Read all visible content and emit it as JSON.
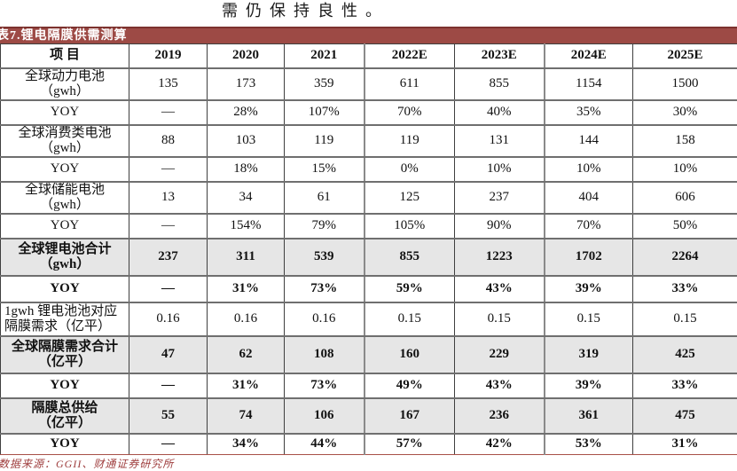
{
  "intro_text": "需仍保持良性。",
  "table": {
    "title": "表7.锂电隔膜供需测算",
    "columns": [
      "项 目",
      "2019",
      "2020",
      "2021",
      "2022E",
      "2023E",
      "2024E",
      "2025E"
    ],
    "rows": [
      {
        "label": "全球动力电池\n（gwh）",
        "style": "normal",
        "align": "center",
        "values": [
          "135",
          "173",
          "359",
          "611",
          "855",
          "1154",
          "1500"
        ]
      },
      {
        "label": "YOY",
        "style": "normal",
        "align": "center",
        "values": [
          "—",
          "28%",
          "107%",
          "70%",
          "40%",
          "35%",
          "30%"
        ]
      },
      {
        "label": "全球消费类电池\n（gwh）",
        "style": "normal",
        "align": "center",
        "values": [
          "88",
          "103",
          "119",
          "119",
          "131",
          "144",
          "158"
        ]
      },
      {
        "label": "YOY",
        "style": "normal",
        "align": "center",
        "values": [
          "—",
          "18%",
          "15%",
          "0%",
          "10%",
          "10%",
          "10%"
        ]
      },
      {
        "label": "全球储能电池\n（gwh）",
        "style": "normal",
        "align": "center",
        "values": [
          "13",
          "34",
          "61",
          "125",
          "237",
          "404",
          "606"
        ]
      },
      {
        "label": "YOY",
        "style": "normal",
        "align": "center",
        "values": [
          "—",
          "154%",
          "79%",
          "105%",
          "90%",
          "70%",
          "50%"
        ]
      },
      {
        "label": "全球锂电池合计\n（gwh）",
        "style": "bold-shaded",
        "align": "center",
        "values": [
          "237",
          "311",
          "539",
          "855",
          "1223",
          "1702",
          "2264"
        ]
      },
      {
        "label": "YOY",
        "style": "bold",
        "align": "center",
        "values": [
          "—",
          "31%",
          "73%",
          "59%",
          "43%",
          "39%",
          "33%"
        ]
      },
      {
        "label": "1gwh 锂电池池对应\n隔膜需求（亿平）",
        "style": "normal",
        "align": "left",
        "values": [
          "0.16",
          "0.16",
          "0.16",
          "0.15",
          "0.15",
          "0.15",
          "0.15"
        ]
      },
      {
        "label": "全球隔膜需求合计\n（亿平）",
        "style": "bold-shaded",
        "align": "center",
        "values": [
          "47",
          "62",
          "108",
          "160",
          "229",
          "319",
          "425"
        ]
      },
      {
        "label": "YOY",
        "style": "bold",
        "align": "center",
        "values": [
          "—",
          "31%",
          "73%",
          "49%",
          "43%",
          "39%",
          "33%"
        ]
      },
      {
        "label": "隔膜总供给\n（亿平）",
        "style": "bold-shaded",
        "align": "center",
        "values": [
          "55",
          "74",
          "106",
          "167",
          "236",
          "361",
          "475"
        ]
      },
      {
        "label": "YOY",
        "style": "bold",
        "align": "center",
        "values": [
          "—",
          "34%",
          "44%",
          "57%",
          "42%",
          "53%",
          "31%"
        ]
      }
    ],
    "source_note": "数据来源：GGII、财通证券研究所"
  },
  "colors": {
    "title_bar": "#9d4a45",
    "title_bar_edge": "#7d322e",
    "shaded_row": "#e6e6e6",
    "source_text": "#9e3c3c",
    "grid_dark": "#3f3f3f",
    "grid_gray": "#6f6f6f",
    "grid_section": "#8a8a8a",
    "bottom_rule": "#a85048"
  }
}
